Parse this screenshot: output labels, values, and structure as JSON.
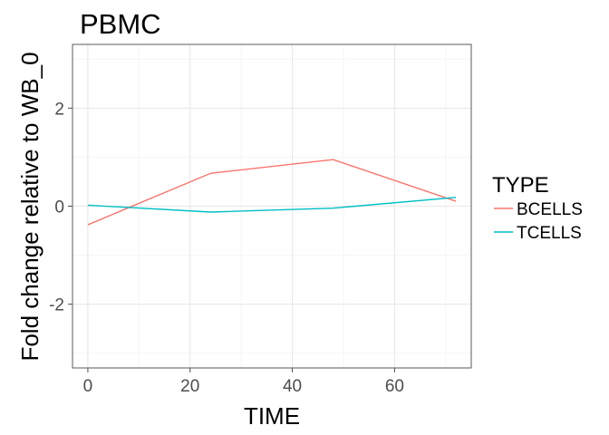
{
  "chart_data": {
    "type": "line",
    "title": "PBMC",
    "xlabel": "TIME",
    "ylabel": "Fold change relative to WB_0",
    "xlim": [
      -3,
      75
    ],
    "ylim": [
      -3.3,
      3.3
    ],
    "x_ticks": [
      0,
      20,
      40,
      60
    ],
    "x_minor_ticks": [
      10,
      30,
      50,
      70
    ],
    "y_ticks": [
      -2,
      0,
      2
    ],
    "y_minor_ticks": [
      -3,
      -1,
      1,
      3
    ],
    "tick_labels_x": [
      "0",
      "20",
      "40",
      "60"
    ],
    "tick_labels_y": [
      "-2",
      "0",
      "2"
    ],
    "grid": true,
    "legend": {
      "title": "TYPE",
      "position": "right"
    },
    "series": [
      {
        "name": "BCELLS",
        "color": "#F8766D",
        "x": [
          0,
          24,
          48,
          72
        ],
        "y": [
          -0.38,
          0.67,
          0.95,
          0.1
        ]
      },
      {
        "name": "TCELLS",
        "color": "#00BFC4",
        "x": [
          0,
          24,
          48,
          72
        ],
        "y": [
          0.02,
          -0.12,
          -0.04,
          0.18
        ]
      }
    ]
  }
}
